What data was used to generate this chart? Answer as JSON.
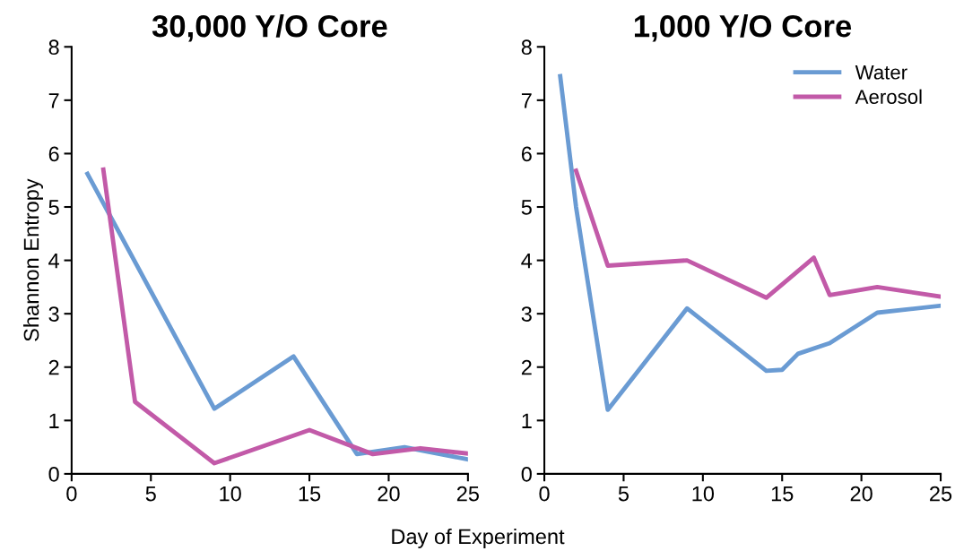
{
  "chart_data": [
    {
      "type": "line",
      "title": "30,000 Y/O Core",
      "xlabel": "Day of Experiment",
      "ylabel": "Shannon Entropy",
      "xlim": [
        0,
        25
      ],
      "xticks": [
        0,
        5,
        10,
        15,
        20,
        25
      ],
      "ylim": [
        0,
        8
      ],
      "yticks": [
        0,
        1,
        2,
        3,
        4,
        5,
        6,
        7,
        8
      ],
      "grid": false,
      "legend": false,
      "series": [
        {
          "color": "#6a9bd3",
          "x": [
            1,
            9,
            14,
            18,
            21,
            25
          ],
          "values": [
            5.62,
            1.22,
            2.2,
            0.37,
            0.5,
            0.27
          ]
        },
        {
          "color": "#c25aa8",
          "x": [
            2,
            4,
            9,
            15,
            19,
            22,
            25
          ],
          "values": [
            5.7,
            1.35,
            0.2,
            0.82,
            0.37,
            0.48,
            0.38
          ]
        }
      ]
    },
    {
      "type": "line",
      "title": "1,000 Y/O Core",
      "xlim": [
        0,
        25
      ],
      "xticks": [
        0,
        5,
        10,
        15,
        20,
        25
      ],
      "ylim": [
        0,
        8
      ],
      "yticks": [
        0,
        1,
        2,
        3,
        4,
        5,
        6,
        7,
        8
      ],
      "grid": false,
      "legend": "top right",
      "series": [
        {
          "name": "Water",
          "color": "#6a9bd3",
          "x": [
            1,
            2,
            4,
            9,
            14,
            15,
            16,
            18,
            21,
            25
          ],
          "values": [
            7.45,
            5.0,
            1.2,
            3.1,
            1.93,
            1.95,
            2.25,
            2.45,
            3.02,
            3.15
          ]
        },
        {
          "name": "Aerosol",
          "color": "#c25aa8",
          "x": [
            2,
            4,
            9,
            14,
            17,
            18,
            21,
            25
          ],
          "values": [
            5.68,
            3.9,
            4.0,
            3.3,
            4.05,
            3.35,
            3.5,
            3.32
          ]
        }
      ]
    }
  ]
}
